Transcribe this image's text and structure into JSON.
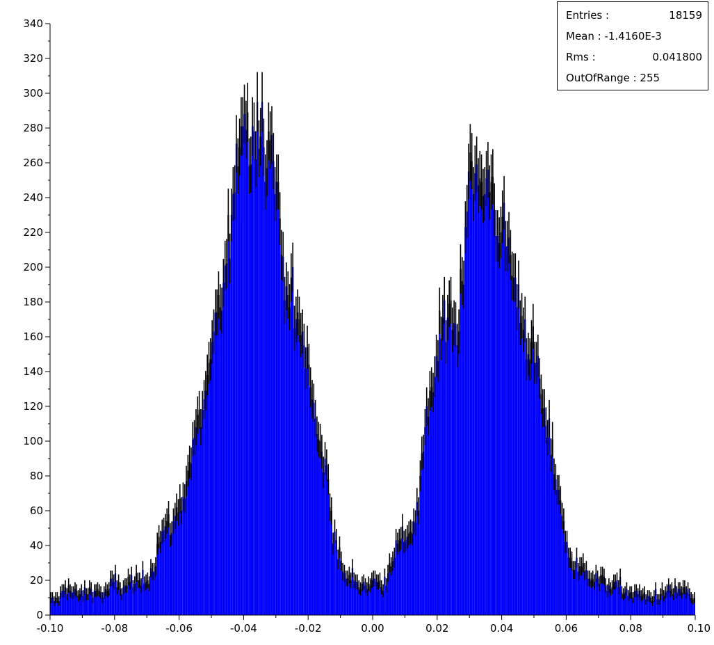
{
  "stats": {
    "entries_label": "Entries :",
    "entries_value": "18159",
    "mean_label": "Mean : -1.4160E-3",
    "rms_label": "Rms :",
    "rms_value": "0.041800",
    "outofrange_label": "OutOfRange : 255"
  },
  "colors": {
    "fill": "#0000ff",
    "error_bar": "#000000",
    "axis": "#000000"
  },
  "chart_data": {
    "type": "bar",
    "title": "",
    "xlabel": "",
    "ylabel": "",
    "xlim": [
      -0.1,
      0.1
    ],
    "ylim": [
      0,
      340
    ],
    "bins": 400,
    "x_ticks": [
      "-0.10",
      "-0.08",
      "-0.06",
      "-0.04",
      "-0.02",
      "0.00",
      "0.02",
      "0.04",
      "0.06",
      "0.08",
      "0.10"
    ],
    "y_ticks": [
      "0",
      "20",
      "40",
      "60",
      "80",
      "100",
      "120",
      "140",
      "160",
      "180",
      "200",
      "220",
      "240",
      "260",
      "280",
      "300",
      "320",
      "340"
    ],
    "grid": false,
    "legend": "top-right stats box",
    "series": [
      {
        "profile_x": [
          -0.1,
          -0.097,
          -0.095,
          -0.093,
          -0.09,
          -0.087,
          -0.085,
          -0.083,
          -0.08,
          -0.078,
          -0.075,
          -0.073,
          -0.07,
          -0.068,
          -0.066,
          -0.064,
          -0.062,
          -0.06,
          -0.058,
          -0.056,
          -0.054,
          -0.052,
          -0.05,
          -0.048,
          -0.046,
          -0.044,
          -0.042,
          -0.041,
          -0.04,
          -0.038,
          -0.037,
          -0.036,
          -0.035,
          -0.034,
          -0.033,
          -0.032,
          -0.031,
          -0.03,
          -0.029,
          -0.028,
          -0.026,
          -0.024,
          -0.022,
          -0.02,
          -0.019,
          -0.018,
          -0.016,
          -0.014,
          -0.012,
          -0.01,
          -0.008,
          -0.006,
          -0.004,
          -0.002,
          0.0,
          0.002,
          0.004,
          0.006,
          0.008,
          0.01,
          0.012,
          0.014,
          0.016,
          0.018,
          0.019,
          0.02,
          0.022,
          0.024,
          0.026,
          0.028,
          0.03,
          0.031,
          0.032,
          0.033,
          0.034,
          0.035,
          0.036,
          0.037,
          0.038,
          0.04,
          0.042,
          0.044,
          0.046,
          0.048,
          0.05,
          0.052,
          0.054,
          0.056,
          0.058,
          0.06,
          0.062,
          0.064,
          0.066,
          0.068,
          0.07,
          0.073,
          0.075,
          0.078,
          0.08,
          0.083,
          0.085,
          0.088,
          0.09,
          0.093,
          0.095,
          0.098,
          0.1
        ],
        "profile_y": [
          8,
          10,
          18,
          12,
          12,
          15,
          14,
          12,
          20,
          15,
          20,
          18,
          22,
          28,
          45,
          50,
          52,
          62,
          75,
          95,
          110,
          125,
          145,
          175,
          190,
          225,
          250,
          290,
          295,
          270,
          280,
          270,
          300,
          290,
          250,
          280,
          270,
          250,
          230,
          205,
          190,
          170,
          160,
          145,
          135,
          110,
          95,
          80,
          48,
          30,
          20,
          22,
          18,
          18,
          20,
          18,
          20,
          35,
          40,
          45,
          50,
          60,
          100,
          125,
          140,
          145,
          170,
          180,
          160,
          200,
          265,
          260,
          250,
          245,
          240,
          245,
          255,
          250,
          230,
          220,
          215,
          190,
          175,
          160,
          150,
          130,
          105,
          90,
          70,
          40,
          30,
          25,
          28,
          22,
          20,
          18,
          17,
          15,
          12,
          12,
          10,
          12,
          12,
          14,
          15,
          12,
          8
        ]
      }
    ]
  }
}
